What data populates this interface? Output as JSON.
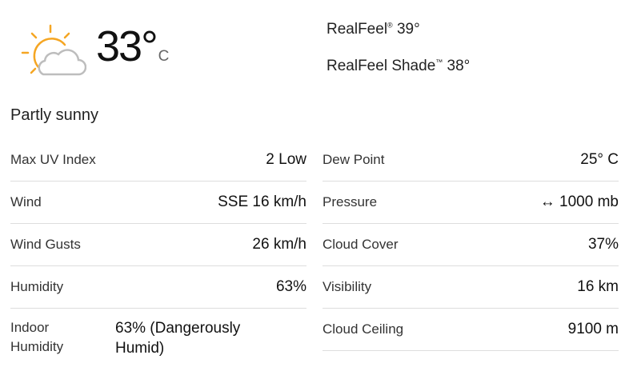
{
  "current": {
    "icon": "partly-sunny-icon",
    "temperature": "33°",
    "unit": "C",
    "realfeel_label": "RealFeel",
    "realfeel_mark": "®",
    "realfeel_value": "39°",
    "realfeel_shade_label": "RealFeel Shade",
    "realfeel_shade_mark": "™",
    "realfeel_shade_value": "38°",
    "phrase": "Partly sunny"
  },
  "details_left": [
    {
      "label": "Max UV Index",
      "value": "2 Low"
    },
    {
      "label": "Wind",
      "value": "SSE 16 km/h"
    },
    {
      "label": "Wind Gusts",
      "value": "26 km/h"
    },
    {
      "label": "Humidity",
      "value": "63%"
    },
    {
      "label": "Indoor Humidity",
      "value": "63% (Dangerously Humid)"
    }
  ],
  "details_right": [
    {
      "label": "Dew Point",
      "value": "25° C"
    },
    {
      "label": "Pressure",
      "value": "↔ 1000 mb"
    },
    {
      "label": "Cloud Cover",
      "value": "37%"
    },
    {
      "label": "Visibility",
      "value": "16 km"
    },
    {
      "label": "Cloud Ceiling",
      "value": "9100 m"
    }
  ],
  "colors": {
    "sun": "#f5a623",
    "cloud": "#bdbdbd"
  }
}
